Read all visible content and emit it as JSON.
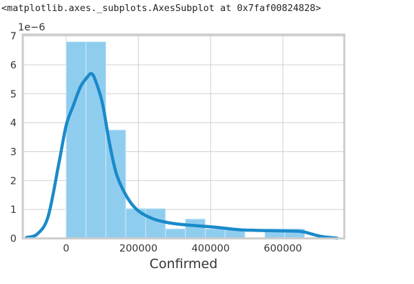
{
  "output_text": "<matplotlib.axes._subplots.AxesSubplot at 0x7faf00824828>",
  "chart_data": {
    "type": "bar",
    "title": "",
    "xlabel": "Confirmed",
    "ylabel": "",
    "offset_text": "1e−6",
    "xlim": [
      -120000,
      770000
    ],
    "ylim": [
      0,
      7.05
    ],
    "grid": true,
    "xticks": [
      0,
      200000,
      400000,
      600000
    ],
    "xtick_labels": [
      "0",
      "200000",
      "400000",
      "600000"
    ],
    "yticks": [
      0,
      1,
      2,
      3,
      4,
      5,
      6,
      7
    ],
    "ytick_labels": [
      "0",
      "1",
      "2",
      "3",
      "4",
      "5",
      "6",
      "7"
    ],
    "histogram": {
      "bin_edges": [
        0,
        55000,
        110000,
        165000,
        220000,
        275000,
        330000,
        385000,
        440000,
        495000,
        550000,
        605000,
        660000
      ],
      "values": [
        6.8,
        6.8,
        3.75,
        1.03,
        1.03,
        0.33,
        0.67,
        0.33,
        0.33,
        0,
        0.33,
        0.33
      ],
      "color": "#8fcdef"
    },
    "kde": {
      "x": [
        -110000,
        -80000,
        -50000,
        -20000,
        0,
        20000,
        40000,
        60000,
        70000,
        80000,
        100000,
        120000,
        140000,
        170000,
        200000,
        240000,
        280000,
        320000,
        360000,
        400000,
        440000,
        480000,
        520000,
        560000,
        600000,
        640000,
        660000,
        680000,
        710000,
        750000
      ],
      "y": [
        0.03,
        0.15,
        0.75,
        2.6,
        3.9,
        4.6,
        5.25,
        5.6,
        5.7,
        5.5,
        4.7,
        3.3,
        2.2,
        1.4,
        0.95,
        0.68,
        0.55,
        0.48,
        0.44,
        0.4,
        0.35,
        0.3,
        0.28,
        0.27,
        0.26,
        0.25,
        0.22,
        0.15,
        0.06,
        0.01
      ],
      "color": "#1a8ac9"
    }
  }
}
